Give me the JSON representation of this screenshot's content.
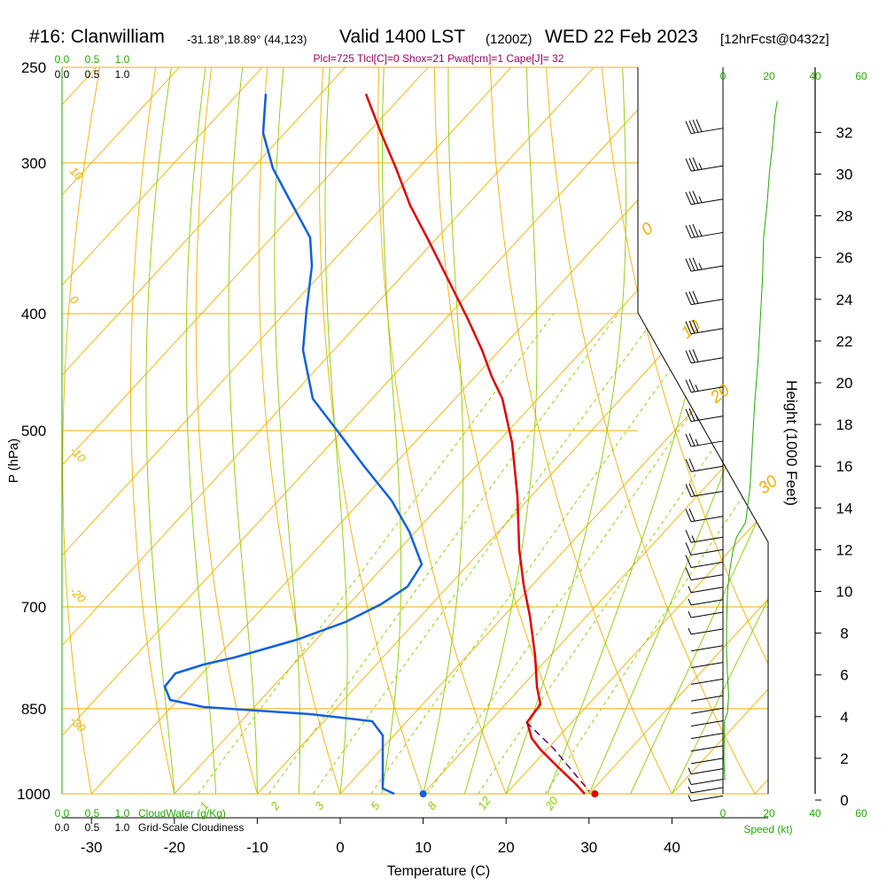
{
  "header": {
    "station": "#16: Clanwilliam",
    "coords": "-31.18°,18.89° (44,123)",
    "valid_main": "Valid 1400 LST",
    "valid_utc": "(1200Z)",
    "date": "WED 22 Feb 2023",
    "forecast": "[12hrFcst@0432z]",
    "params": "Plcl=725 Tlcl[C]=0 Shox=21 Pwat[cm]=1 Cape[J]= 32"
  },
  "colors": {
    "isotherm": "#f0b000",
    "dry_adiabat": "#f0b000",
    "moist_adiabat": "#88cc00",
    "mixing_ratio": "#88cc00",
    "temperature": "#e00000",
    "dewpoint": "#1060e0",
    "parcel": "#660066",
    "green_label": "#22aa00",
    "param_text": "#990066"
  },
  "chart_data": {
    "type": "line",
    "title": "",
    "xlabel": "Temperature (C)",
    "ylabel": "P (hPa)",
    "right_ylabel": "Height (1000 Feet)",
    "x_ticks": [
      -30,
      -20,
      -10,
      0,
      10,
      20,
      30,
      40
    ],
    "pressure_ticks": [
      250,
      300,
      400,
      500,
      700,
      850,
      1000
    ],
    "height_ticks": [
      0,
      2,
      4,
      6,
      8,
      10,
      12,
      14,
      16,
      18,
      20,
      22,
      24,
      26,
      28,
      30,
      32
    ],
    "isotherm_labels": [
      {
        "text": "10",
        "p": 305
      },
      {
        "text": "0",
        "p": 390
      },
      {
        "text": "-10",
        "p": 520
      },
      {
        "text": "-20",
        "p": 680
      },
      {
        "text": "-30",
        "p": 870
      }
    ],
    "upper_right_labels": [
      {
        "text": "0",
        "p": 345
      },
      {
        "text": "10",
        "p": 420
      },
      {
        "text": "20",
        "p": 475
      },
      {
        "text": "30",
        "p": 565
      }
    ],
    "mixing_ratio_labels": [
      "1",
      "2",
      "3",
      "5",
      "8",
      "12",
      "20"
    ],
    "series": [
      {
        "name": "Temperature",
        "points": [
          [
            -6.0,
            265
          ],
          [
            -3.5,
            300
          ],
          [
            -1.0,
            340
          ],
          [
            1.5,
            380
          ],
          [
            4.0,
            420
          ],
          [
            5.8,
            455
          ],
          [
            7.5,
            500
          ],
          [
            8.0,
            550
          ],
          [
            8.3,
            600
          ],
          [
            8.8,
            650
          ],
          [
            10.0,
            700
          ],
          [
            11.0,
            740
          ],
          [
            11.5,
            790
          ],
          [
            12.3,
            830
          ],
          [
            11.0,
            860
          ],
          [
            10.5,
            900
          ],
          [
            11.7,
            950
          ],
          [
            13.5,
            1000
          ],
          [
            14.5,
            1000
          ]
        ]
      },
      {
        "name": "Dewpoint",
        "points": [
          [
            -32.5,
            265
          ],
          [
            -33.0,
            285
          ],
          [
            -32.0,
            320
          ],
          [
            -29.0,
            350
          ],
          [
            -28.5,
            380
          ],
          [
            -29.0,
            420
          ],
          [
            -27.5,
            460
          ],
          [
            -22.0,
            520
          ],
          [
            -17.0,
            580
          ],
          [
            -14.0,
            620
          ],
          [
            -13.5,
            650
          ],
          [
            -16.0,
            690
          ],
          [
            -21.0,
            740
          ],
          [
            -30.0,
            780
          ],
          [
            -35.0,
            800
          ],
          [
            -34.5,
            835
          ],
          [
            -25.0,
            855
          ],
          [
            -12.0,
            865
          ],
          [
            -7.5,
            880
          ],
          [
            -6.5,
            900
          ],
          [
            -6.5,
            950
          ],
          [
            -6.5,
            990
          ],
          [
            -5.5,
            1000
          ]
        ]
      },
      {
        "name": "Parcel",
        "points": [
          [
            11.0,
            860
          ],
          [
            13.0,
            930
          ],
          [
            14.5,
            1000
          ]
        ]
      }
    ],
    "surface_temp": {
      "x": 30.7,
      "p": 1000
    },
    "surface_dewpoint": {
      "x": 10.0,
      "p": 1000
    },
    "wind_speed_ticks": [
      0,
      20,
      40,
      60
    ],
    "wind_speed_label": "Speed (kt)",
    "cloud_axis_ticks": [
      "0.0",
      "0.5",
      "1.0"
    ],
    "cloud_water_label": "CloudWater (g/Kg)",
    "cloudiness_label": "Grid-Scale Cloudiness",
    "wind_profile": [
      {
        "h": 0.2,
        "speed": 6
      },
      {
        "h": 0.6,
        "speed": 6
      },
      {
        "h": 1.0,
        "speed": 5
      },
      {
        "h": 1.5,
        "speed": 5
      },
      {
        "h": 2.0,
        "speed": 4
      },
      {
        "h": 2.6,
        "speed": 3
      },
      {
        "h": 3.2,
        "speed": 3
      },
      {
        "h": 3.8,
        "speed": 2
      },
      {
        "h": 4.4,
        "speed": 2
      },
      {
        "h": 5.0,
        "speed": 2
      },
      {
        "h": 5.8,
        "speed": 2
      },
      {
        "h": 6.6,
        "speed": 3
      },
      {
        "h": 7.4,
        "speed": 4
      },
      {
        "h": 8.2,
        "speed": 5
      },
      {
        "h": 9.0,
        "speed": 6
      },
      {
        "h": 9.6,
        "speed": 7
      },
      {
        "h": 10.2,
        "speed": 8
      },
      {
        "h": 10.8,
        "speed": 10
      },
      {
        "h": 11.4,
        "speed": 12
      },
      {
        "h": 12.0,
        "speed": 14
      },
      {
        "h": 12.6,
        "speed": 17
      },
      {
        "h": 13.6,
        "speed": 20
      },
      {
        "h": 14.8,
        "speed": 22
      },
      {
        "h": 16.0,
        "speed": 24
      },
      {
        "h": 17.2,
        "speed": 26
      },
      {
        "h": 18.4,
        "speed": 27
      },
      {
        "h": 19.8,
        "speed": 28
      },
      {
        "h": 21.2,
        "speed": 30
      },
      {
        "h": 22.6,
        "speed": 32
      },
      {
        "h": 24.0,
        "speed": 33
      },
      {
        "h": 25.6,
        "speed": 35
      },
      {
        "h": 27.2,
        "speed": 36
      },
      {
        "h": 28.8,
        "speed": 37
      },
      {
        "h": 30.4,
        "speed": 38
      },
      {
        "h": 32.2,
        "speed": 40
      }
    ],
    "speed_profile": [
      [
        0,
        1.0
      ],
      [
        0.8,
        1.0
      ],
      [
        0.4,
        2.0
      ],
      [
        0.6,
        3.0
      ],
      [
        0.7,
        3.8
      ],
      [
        2.0,
        4.2
      ],
      [
        2.5,
        5.0
      ],
      [
        2.0,
        6.0
      ],
      [
        1.6,
        7.0
      ],
      [
        1.6,
        8.5
      ],
      [
        2.0,
        10.0
      ],
      [
        3.0,
        11.0
      ],
      [
        4.5,
        12.0
      ],
      [
        6.0,
        12.6
      ],
      [
        10.0,
        13.3
      ],
      [
        12.0,
        15.0
      ],
      [
        13.0,
        17.0
      ],
      [
        14.0,
        19.0
      ],
      [
        15.5,
        21.0
      ],
      [
        16.5,
        23.0
      ],
      [
        17.5,
        25.0
      ],
      [
        18.0,
        27.0
      ],
      [
        19.5,
        28.5
      ],
      [
        20.5,
        30.0
      ],
      [
        22.0,
        31.5
      ],
      [
        23.0,
        32.8
      ],
      [
        24.0,
        33.5
      ]
    ]
  }
}
